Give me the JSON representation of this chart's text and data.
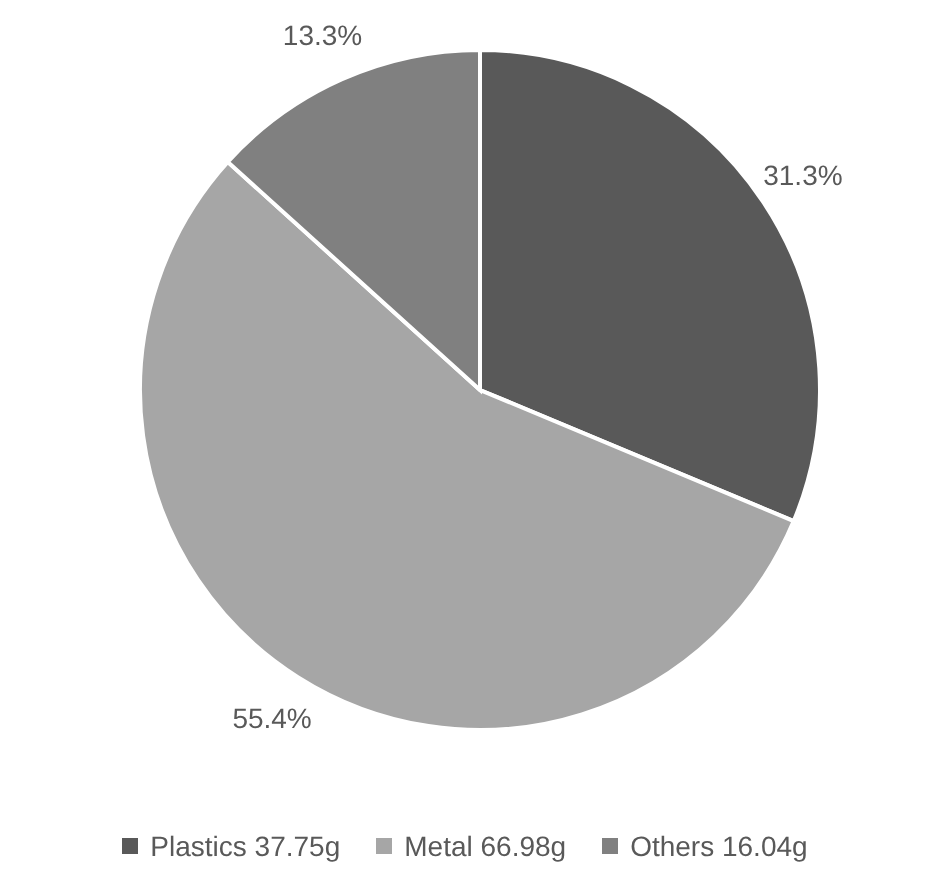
{
  "chart_data": {
    "type": "pie",
    "categories": [
      "Plastics 37.75g",
      "Metal 66.98g",
      "Others 16.04g"
    ],
    "values": [
      31.3,
      55.4,
      13.3
    ],
    "value_labels": [
      "31.3%",
      "55.4%",
      "13.3%"
    ],
    "colors": [
      "#595959",
      "#a6a6a6",
      "#808080"
    ],
    "legend": "bottom"
  }
}
